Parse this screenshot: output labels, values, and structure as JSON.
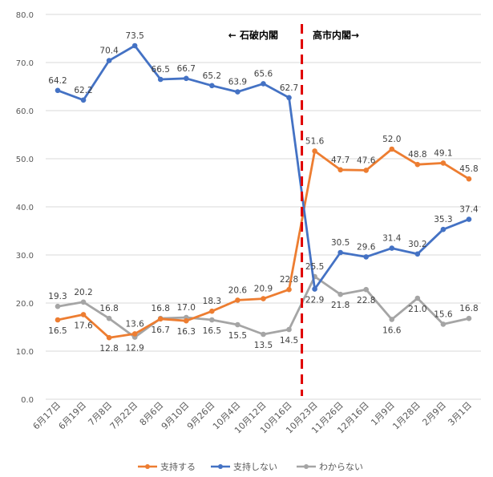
{
  "chart_data": {
    "type": "line",
    "title": "",
    "xlabel": "",
    "ylabel": "",
    "ylim": [
      0,
      80
    ],
    "yticks": [
      "0.0",
      "10.0",
      "20.0",
      "30.0",
      "40.0",
      "50.0",
      "60.0",
      "70.0",
      "80.0"
    ],
    "grid": true,
    "legend_placement": "bottom",
    "categories": [
      "6月17日",
      "6月19日",
      "7月8日",
      "7月22日",
      "8月6日",
      "9月10日",
      "9月26日",
      "10月4日",
      "10月12日",
      "10月16日",
      "10月23日",
      "11月26日",
      "12月16日",
      "1月9日",
      "1月28日",
      "2月9日",
      "3月1日"
    ],
    "series": [
      {
        "name": "支持する",
        "color": "#ED7D31",
        "values": [
          16.5,
          17.6,
          12.8,
          13.6,
          16.7,
          16.3,
          18.3,
          20.6,
          20.9,
          22.8,
          51.6,
          47.7,
          47.6,
          52.0,
          48.8,
          49.1,
          45.8
        ],
        "labels": [
          "16.5",
          "17.6",
          "12.8",
          "13.6",
          "16.7",
          "16.3",
          "18.3",
          "20.6",
          "20.9",
          "22.8",
          "51.6",
          "47.7",
          "47.6",
          "52.0",
          "48.8",
          "49.1",
          "45.8"
        ]
      },
      {
        "name": "支持しない",
        "color": "#4472C4",
        "values": [
          64.2,
          62.2,
          70.4,
          73.5,
          66.5,
          66.7,
          65.2,
          63.9,
          65.6,
          62.7,
          22.9,
          30.5,
          29.6,
          31.4,
          30.2,
          35.3,
          37.4
        ],
        "labels": [
          "64.2",
          "62.2",
          "70.4",
          "73.5",
          "66.5",
          "66.7",
          "65.2",
          "63.9",
          "65.6",
          "62.7",
          "22.9",
          "30.5",
          "29.6",
          "31.4",
          "30.2",
          "35.3",
          "37.4"
        ]
      },
      {
        "name": "わからない",
        "color": "#A5A5A5",
        "values": [
          19.3,
          20.2,
          16.8,
          12.9,
          16.8,
          17.0,
          16.5,
          15.5,
          13.5,
          14.5,
          25.5,
          21.8,
          22.8,
          16.6,
          21.0,
          15.6,
          16.8
        ],
        "labels": [
          "19.3",
          "20.2",
          "16.8",
          "12.9",
          "16.8",
          "17.0",
          "16.5",
          "15.5",
          "13.5",
          "14.5",
          "25.5",
          "21.8",
          "22.8",
          "16.6",
          "21.0",
          "15.6",
          "16.8"
        ]
      }
    ],
    "annotations": {
      "divider_color": "#E00000",
      "left": "← 石破内閣",
      "right": "高市内閣→"
    }
  }
}
